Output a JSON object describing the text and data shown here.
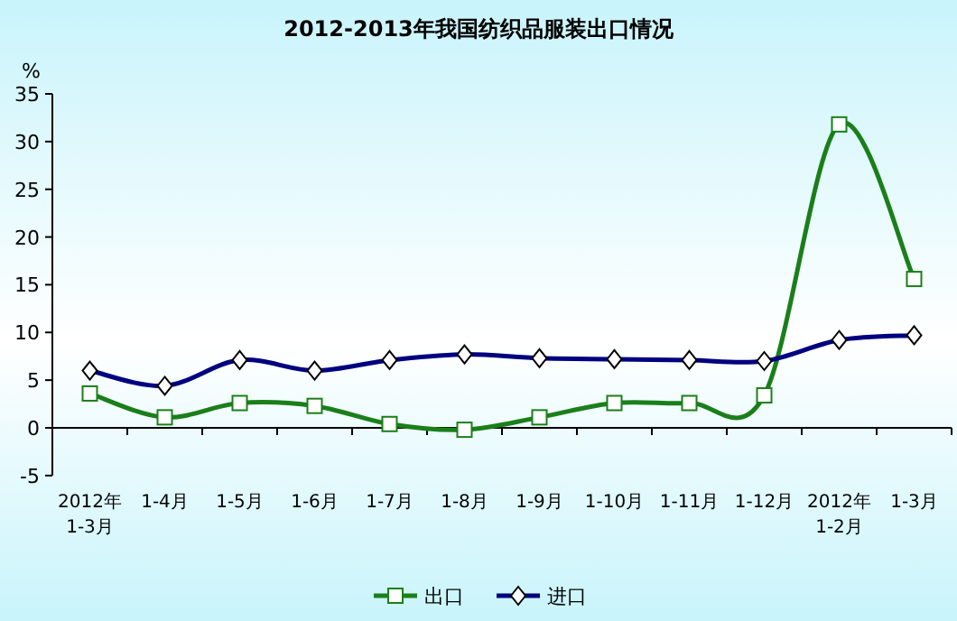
{
  "chart_data": {
    "type": "line",
    "title": "2012-2013年我国纺织品服装出口情况",
    "ylabel": "%",
    "categories": [
      "2012年\n1-3月",
      "1-4月",
      "1-5月",
      "1-6月",
      "1-7月",
      "1-8月",
      "1-9月",
      "1-10月",
      "1-11月",
      "1-12月",
      "2012年\n1-2月",
      "1-3月"
    ],
    "series": [
      {
        "name": "出口",
        "color": "#1a7f1a",
        "marker": "square",
        "values": [
          3.6,
          1.1,
          2.6,
          2.3,
          0.4,
          -0.2,
          1.1,
          2.6,
          2.6,
          3.4,
          31.8,
          15.6
        ]
      },
      {
        "name": "进口",
        "color": "#000080",
        "marker": "diamond",
        "values": [
          6.0,
          4.4,
          7.1,
          6.0,
          7.1,
          7.7,
          7.3,
          7.2,
          7.1,
          7.0,
          9.2,
          9.7
        ]
      }
    ],
    "ylim": [
      -5,
      35
    ],
    "yticks": [
      -5,
      0,
      5,
      10,
      15,
      20,
      25,
      30,
      35
    ],
    "legend": "bottom"
  }
}
